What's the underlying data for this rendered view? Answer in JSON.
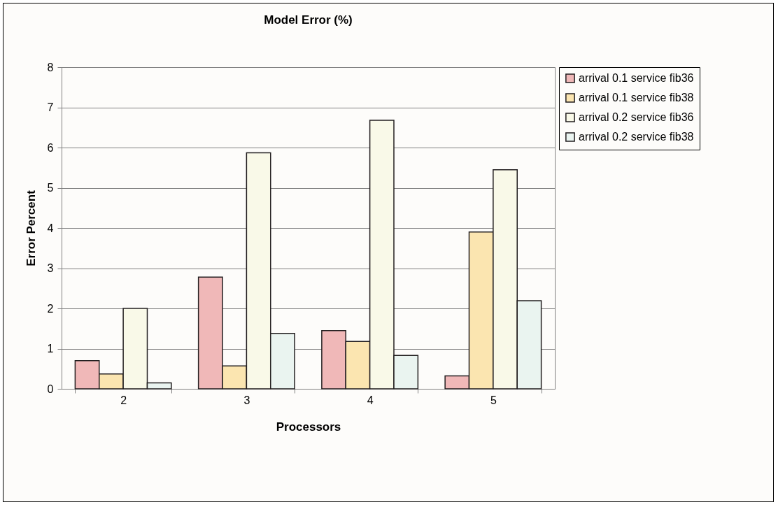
{
  "chart_data": {
    "type": "bar",
    "title": "Model Error (%)",
    "xlabel": "Processors",
    "ylabel": "Error Percent",
    "categories": [
      "2",
      "3",
      "4",
      "5"
    ],
    "series": [
      {
        "name": "arrival 0.1 service fib36",
        "color": "#f0b8b8",
        "values": [
          0.7,
          2.78,
          1.45,
          0.32
        ]
      },
      {
        "name": "arrival 0.1 service fib38",
        "color": "#fbe5b0",
        "values": [
          0.37,
          0.57,
          1.18,
          3.9
        ]
      },
      {
        "name": "arrival 0.2 service fib36",
        "color": "#f9f9e8",
        "values": [
          2.0,
          5.87,
          6.68,
          5.45
        ]
      },
      {
        "name": "arrival 0.2 service fib38",
        "color": "#eaf4f0",
        "values": [
          0.15,
          1.38,
          0.83,
          2.19
        ]
      }
    ],
    "ylim": [
      0,
      8
    ],
    "yticks": [
      0,
      1,
      2,
      3,
      4,
      5,
      6,
      7,
      8
    ],
    "grid": "y",
    "legend": "right"
  }
}
